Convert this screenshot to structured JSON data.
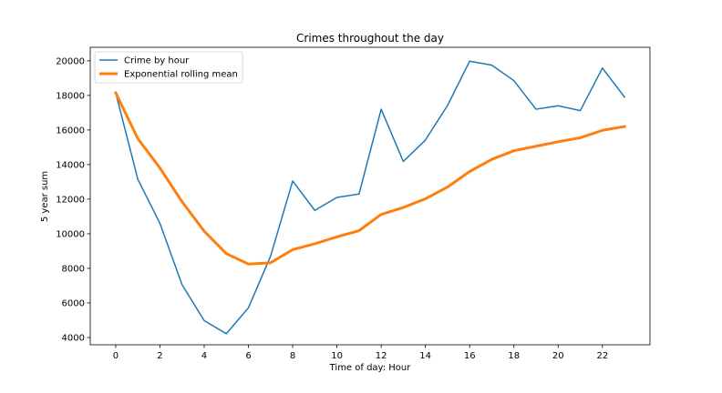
{
  "chart_data": {
    "type": "line",
    "title": "Crimes throughout the day",
    "xlabel": "Time of day: Hour",
    "ylabel": "5 year sum",
    "x": [
      0,
      1,
      2,
      3,
      4,
      5,
      6,
      7,
      8,
      9,
      10,
      11,
      12,
      13,
      14,
      15,
      16,
      17,
      18,
      19,
      20,
      21,
      22,
      23
    ],
    "xticks": [
      0,
      2,
      4,
      6,
      8,
      10,
      12,
      14,
      16,
      18,
      20,
      22
    ],
    "yticks": [
      4000,
      6000,
      8000,
      10000,
      12000,
      14000,
      16000,
      18000,
      20000
    ],
    "xlim": [
      -1.15,
      24.15
    ],
    "ylim": [
      3580,
      20780
    ],
    "grid": false,
    "legend_position": "top-left",
    "series": [
      {
        "name": "Crime by hour",
        "color": "#1f77b4",
        "values": [
          18150,
          13150,
          10600,
          7050,
          4980,
          4220,
          5720,
          8700,
          13050,
          11350,
          12100,
          12300,
          17200,
          14180,
          15420,
          17420,
          19980,
          19750,
          18850,
          17200,
          17400,
          17120,
          19580,
          17900
        ]
      },
      {
        "name": "Exponential rolling mean",
        "color": "#ff7f0e",
        "values": [
          18150,
          15500,
          13800,
          11850,
          10150,
          8850,
          8250,
          8320,
          9080,
          9420,
          9820,
          10180,
          11120,
          11520,
          12020,
          12700,
          13600,
          14300,
          14800,
          15060,
          15320,
          15550,
          15980,
          16200
        ]
      }
    ]
  }
}
